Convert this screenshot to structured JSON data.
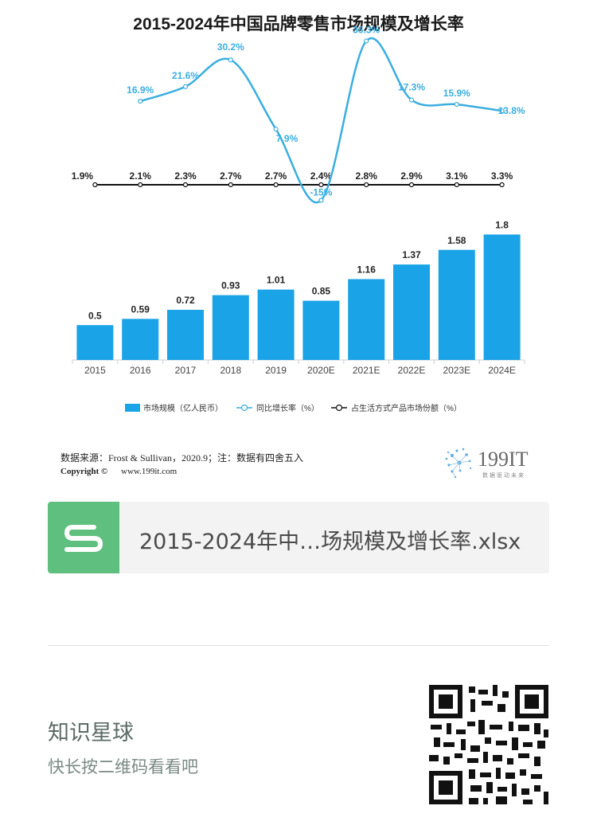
{
  "chart_data": {
    "type": "bar",
    "title": "2015-2024年中国品牌零售市场规模及增长率",
    "categories": [
      "2015",
      "2016",
      "2017",
      "2018",
      "2019",
      "2020E",
      "2021E",
      "2022E",
      "2023E",
      "2024E"
    ],
    "series": [
      {
        "name": "市场规模（亿人民币）",
        "kind": "bar",
        "color": "#1aa3e6",
        "values": [
          0.5,
          0.59,
          0.72,
          0.93,
          1.01,
          0.85,
          1.16,
          1.37,
          1.58,
          1.8
        ],
        "labels": [
          "0.5",
          "0.59",
          "0.72",
          "0.93",
          "1.01",
          "0.85",
          "1.16",
          "1.37",
          "1.58",
          "1.8"
        ]
      },
      {
        "name": "同比增长率（%）",
        "kind": "line",
        "color": "#3aaee0",
        "values": [
          null,
          16.9,
          21.6,
          30.2,
          7.9,
          -15,
          36.3,
          17.3,
          15.9,
          13.8
        ],
        "labels": [
          "",
          "16.9%",
          "21.6%",
          "30.2%",
          "7.9%",
          "-15%",
          "36.3%",
          "17.3%",
          "15.9%",
          "13.8%"
        ]
      },
      {
        "name": "占生活方式产品市场份额（%）",
        "kind": "line",
        "color": "#111111",
        "values": [
          1.9,
          2.1,
          2.3,
          2.7,
          2.7,
          2.4,
          2.8,
          2.9,
          3.1,
          3.3
        ],
        "labels": [
          "1.9%",
          "2.1%",
          "2.3%",
          "2.7%",
          "2.7%",
          "2.4%",
          "2.8%",
          "2.9%",
          "3.1%",
          "3.3%"
        ]
      }
    ],
    "ylim": [
      0,
      2.0
    ],
    "legend_position": "bottom"
  },
  "footer": {
    "source": "数据来源：Frost & Sullivan，2020.9；注：数据有四舍五入",
    "copyright_label": "Copyright ©",
    "website": "www.199it.com",
    "logo_text": "199IT",
    "logo_sub": "数据驱动未来"
  },
  "file": {
    "name": "2015-2024年中…场规模及增长率.xlsx",
    "icon": "spreadsheet-s-icon"
  },
  "promo": {
    "title": "知识星球",
    "subtitle": "快长按二维码看看吧",
    "qr_icon": "qr-code-icon"
  },
  "colors": {
    "bar": "#1aa3e6",
    "growth_line": "#3aaee0",
    "share_line": "#111111",
    "file_icon_bg": "#5fbf7f"
  }
}
